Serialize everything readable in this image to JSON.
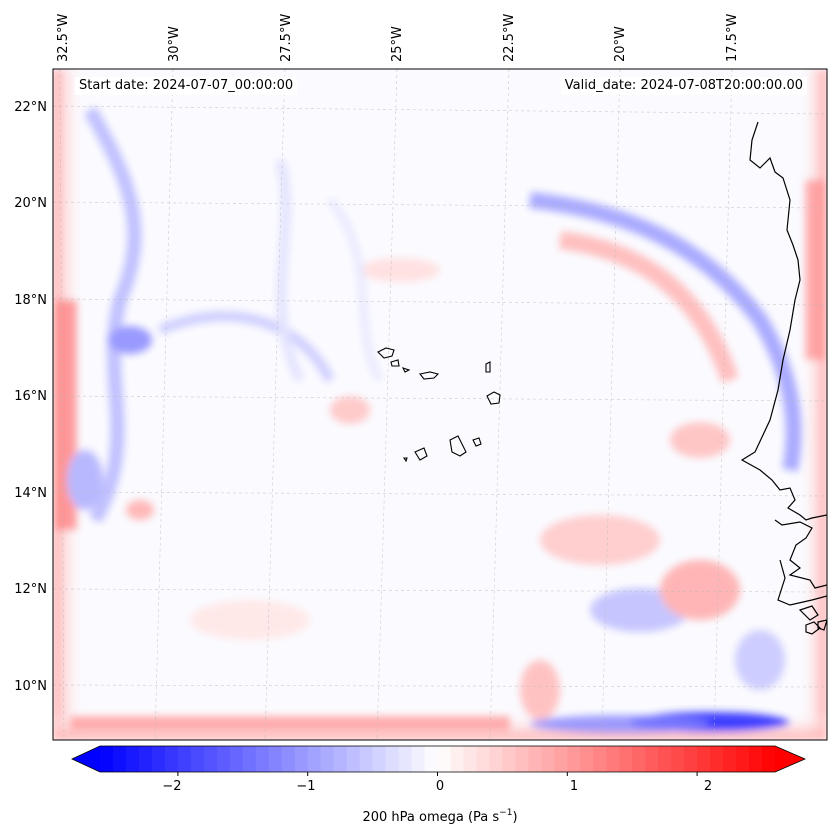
{
  "map": {
    "start_date_label": "Start date: 2024-07-07_00:00:00",
    "valid_date_label": "Valid_date: 2024-07-08T20:00:00.00",
    "lon_labels": [
      "32.5°W",
      "30°W",
      "27.5°W",
      "25°W",
      "22.5°W",
      "20°W",
      "17.5°W"
    ],
    "lat_labels": [
      "22°N",
      "20°N",
      "18°N",
      "16°N",
      "14°N",
      "12°N",
      "10°N"
    ],
    "features": [
      "Cape Verde islands",
      "West African coastline"
    ]
  },
  "colorbar": {
    "ticks": [
      "−2",
      "−1",
      "0",
      "1",
      "2"
    ],
    "tick_values": [
      -2,
      -1,
      0,
      1,
      2
    ],
    "range": [
      -2.6,
      2.6
    ],
    "label_main": "200 hPa omega (Pa s",
    "label_sup": "−1",
    "label_end": ")",
    "colors": {
      "negative": "#0000ff",
      "zero": "#ffffff",
      "positive": "#ff0000"
    }
  }
}
